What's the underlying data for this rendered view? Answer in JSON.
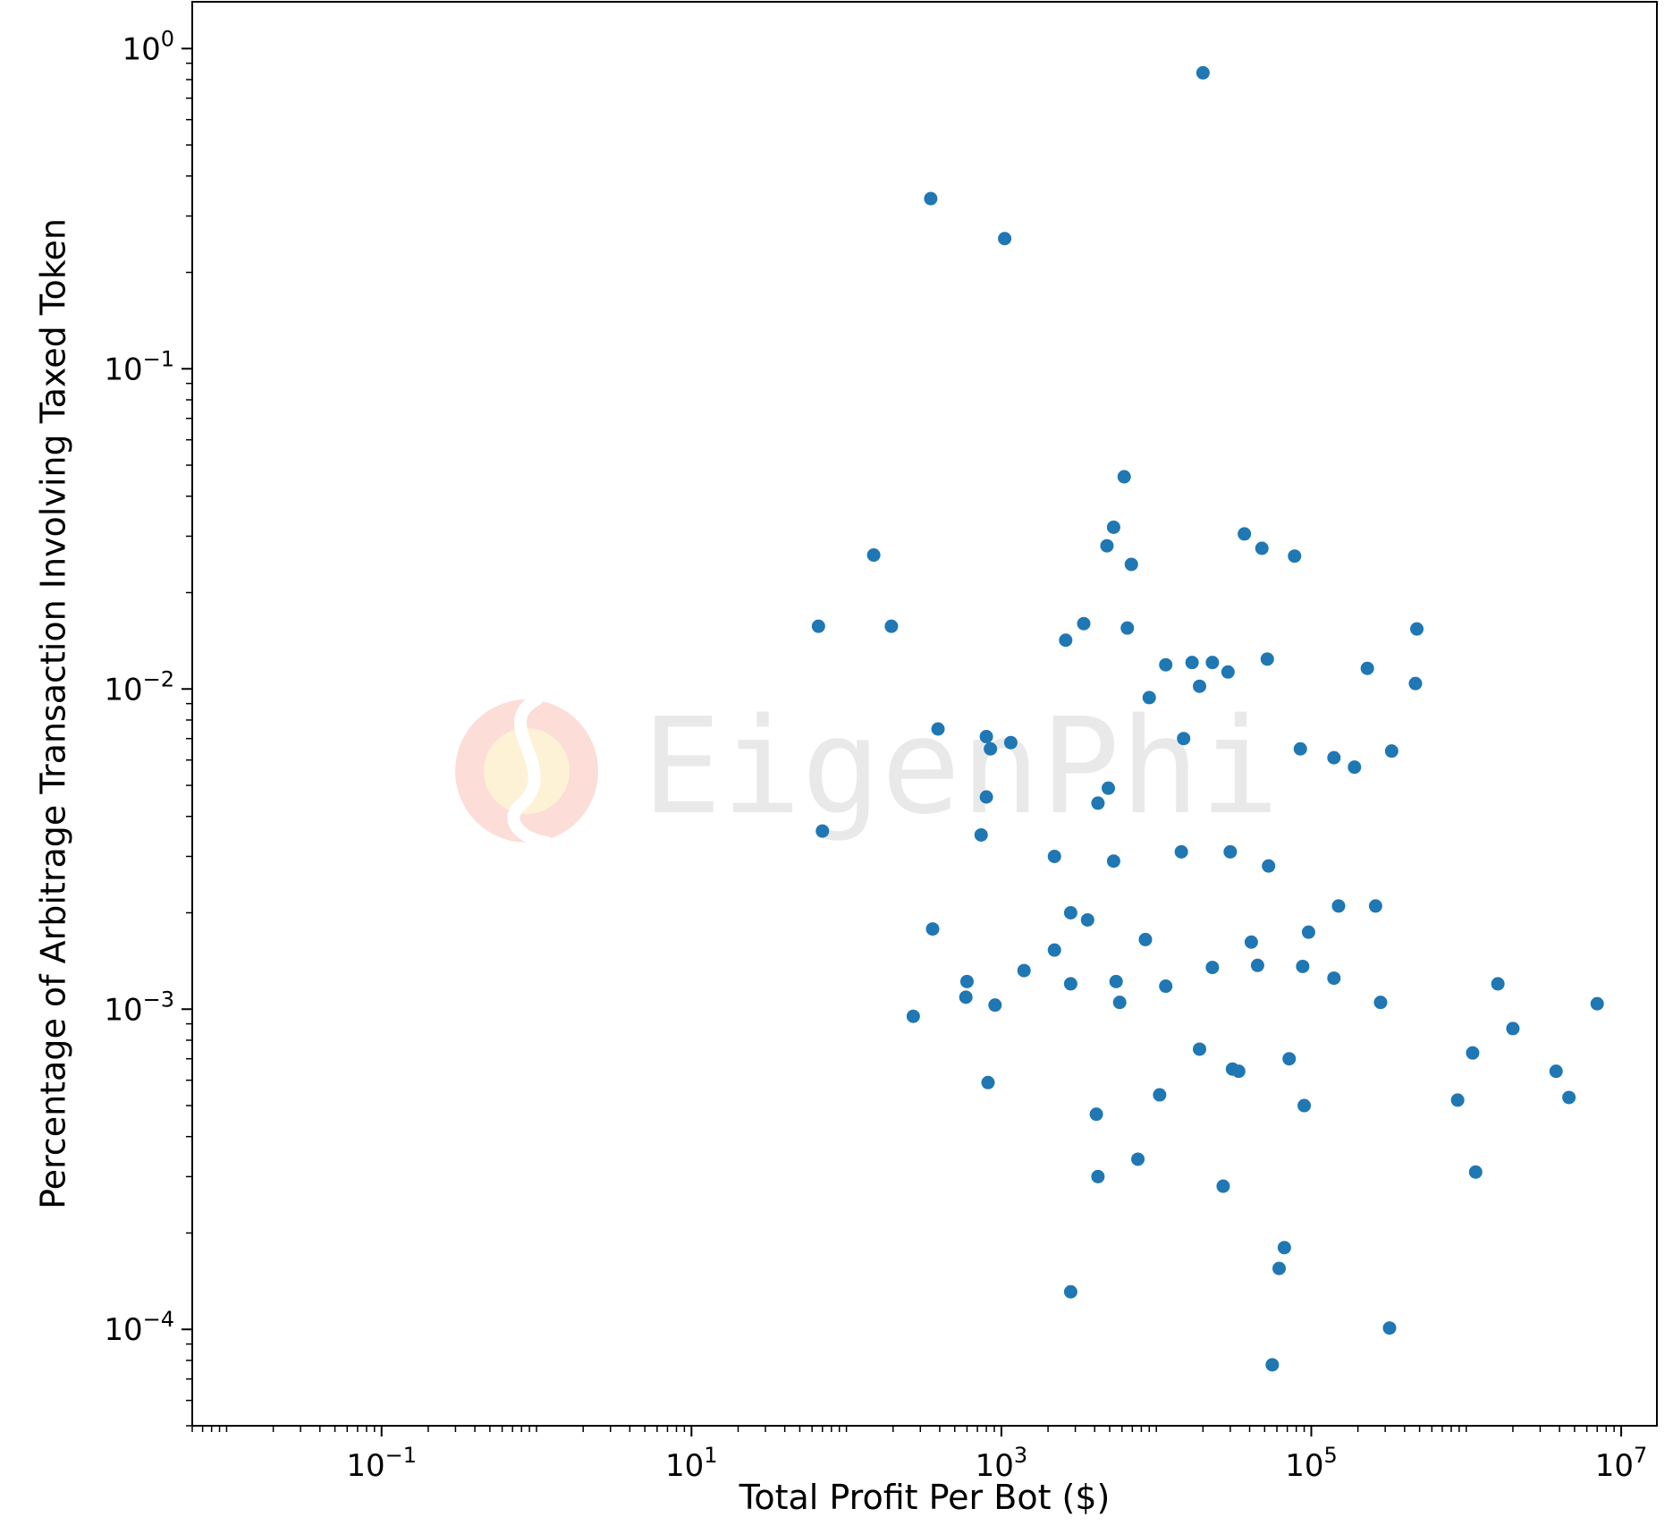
{
  "chart_data": {
    "type": "scatter",
    "title": "",
    "xlabel": "Total Profit Per Bot ($)",
    "ylabel": "Percentage of Arbitrage Transaction Involving Taxed Token",
    "xscale": "log",
    "yscale": "log",
    "xlim": [
      0.006,
      17000000
    ],
    "ylim": [
      5e-05,
      1.4
    ],
    "grid": false,
    "legend": "none",
    "x_ticks": [
      {
        "value": 0.1,
        "base": "10",
        "exp": "−1"
      },
      {
        "value": 10,
        "base": "10",
        "exp": "1"
      },
      {
        "value": 1000,
        "base": "10",
        "exp": "3"
      },
      {
        "value": 100000,
        "base": "10",
        "exp": "5"
      },
      {
        "value": 10000000,
        "base": "10",
        "exp": "7"
      }
    ],
    "y_ticks": [
      {
        "value": 1,
        "base": "10",
        "exp": "0"
      },
      {
        "value": 0.1,
        "base": "10",
        "exp": "−1"
      },
      {
        "value": 0.01,
        "base": "10",
        "exp": "−2"
      },
      {
        "value": 0.001,
        "base": "10",
        "exp": "−3"
      },
      {
        "value": 0.0001,
        "base": "10",
        "exp": "−4"
      }
    ],
    "color": "#1f77b4",
    "points": [
      [
        20000,
        0.84
      ],
      [
        350,
        0.34
      ],
      [
        1050,
        0.255
      ],
      [
        6200,
        0.046
      ],
      [
        5300,
        0.032
      ],
      [
        4800,
        0.028
      ],
      [
        6900,
        0.0245
      ],
      [
        37000,
        0.0305
      ],
      [
        48000,
        0.0275
      ],
      [
        78000,
        0.026
      ],
      [
        150,
        0.0262
      ],
      [
        66,
        0.0157
      ],
      [
        195,
        0.0157
      ],
      [
        3400,
        0.016
      ],
      [
        2600,
        0.0142
      ],
      [
        6500,
        0.0155
      ],
      [
        11500,
        0.0119
      ],
      [
        17000,
        0.0121
      ],
      [
        23000,
        0.0121
      ],
      [
        29000,
        0.0113
      ],
      [
        52000,
        0.0124
      ],
      [
        19000,
        0.0102
      ],
      [
        9000,
        0.0094
      ],
      [
        230000,
        0.0116
      ],
      [
        480000,
        0.0154
      ],
      [
        470000,
        0.0104
      ],
      [
        390,
        0.0075
      ],
      [
        800,
        0.0071
      ],
      [
        850,
        0.0065
      ],
      [
        1150,
        0.0068
      ],
      [
        15000,
        0.007
      ],
      [
        85000,
        0.0065
      ],
      [
        140000,
        0.0061
      ],
      [
        190000,
        0.0057
      ],
      [
        330000,
        0.0064
      ],
      [
        4900,
        0.0049
      ],
      [
        800,
        0.0046
      ],
      [
        4200,
        0.0044
      ],
      [
        70,
        0.0036
      ],
      [
        740,
        0.0035
      ],
      [
        2200,
        0.003
      ],
      [
        14500,
        0.0031
      ],
      [
        30000,
        0.0031
      ],
      [
        5300,
        0.0029
      ],
      [
        53000,
        0.0028
      ],
      [
        150000,
        0.0021
      ],
      [
        260000,
        0.0021
      ],
      [
        2800,
        0.002
      ],
      [
        3600,
        0.0019
      ],
      [
        360,
        0.00178
      ],
      [
        96000,
        0.00174
      ],
      [
        8500,
        0.00165
      ],
      [
        41000,
        0.00162
      ],
      [
        2200,
        0.00153
      ],
      [
        1400,
        0.00132
      ],
      [
        23000,
        0.00135
      ],
      [
        45000,
        0.00137
      ],
      [
        88000,
        0.00136
      ],
      [
        140000,
        0.00125
      ],
      [
        600,
        0.00122
      ],
      [
        2800,
        0.0012
      ],
      [
        5500,
        0.00122
      ],
      [
        11500,
        0.00118
      ],
      [
        1600000,
        0.0012
      ],
      [
        590,
        0.00109
      ],
      [
        910,
        0.00103
      ],
      [
        5800,
        0.00105
      ],
      [
        280000,
        0.00105
      ],
      [
        7000000,
        0.00104
      ],
      [
        270,
        0.00095
      ],
      [
        2000000,
        0.00087
      ],
      [
        19000,
        0.00075
      ],
      [
        1100000,
        0.00073
      ],
      [
        72000,
        0.0007
      ],
      [
        31000,
        0.00065
      ],
      [
        34000,
        0.00064
      ],
      [
        3800000,
        0.00064
      ],
      [
        820,
        0.00059
      ],
      [
        10500,
        0.00054
      ],
      [
        880000,
        0.00052
      ],
      [
        4600000,
        0.00053
      ],
      [
        90000,
        0.0005
      ],
      [
        4100,
        0.00047
      ],
      [
        7600,
        0.00034
      ],
      [
        1150000,
        0.00031
      ],
      [
        4200,
        0.0003
      ],
      [
        27000,
        0.00028
      ],
      [
        67000,
        0.00018
      ],
      [
        62000,
        0.000155
      ],
      [
        2800,
        0.000131
      ],
      [
        320000,
        0.000101
      ],
      [
        56000,
        7.75e-05
      ]
    ]
  },
  "watermark": {
    "text": "EigenPhi",
    "logo_colors": [
      "#fcd8d2",
      "#fdf0cf"
    ]
  }
}
